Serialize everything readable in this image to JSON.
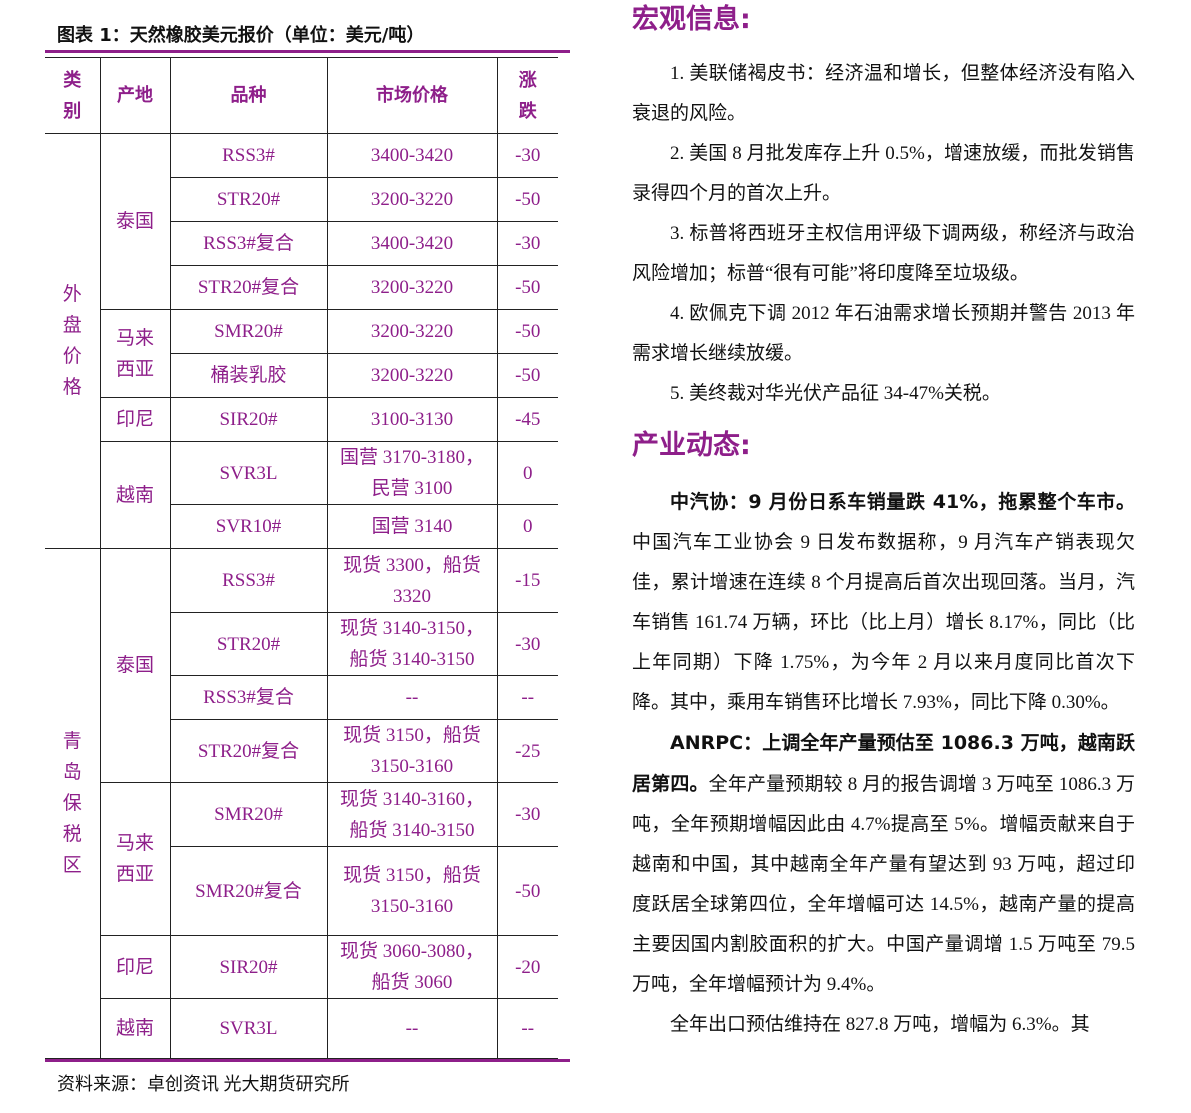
{
  "table": {
    "title": "图表 1：天然橡胶美元报价（单位：美元/吨）",
    "headers": [
      "类别",
      "产地",
      "品种",
      "市场价格",
      "涨跌"
    ],
    "regions": [
      {
        "label": "外盘价格",
        "origins": [
          {
            "name": "泰国",
            "rows": [
              [
                "RSS3#",
                "3400-3420",
                "-30"
              ],
              [
                "STR20#",
                "3200-3220",
                "-50"
              ],
              [
                "RSS3#复合",
                "3400-3420",
                "-30"
              ],
              [
                "STR20#复合",
                "3200-3220",
                "-50"
              ]
            ]
          },
          {
            "name": "马来西亚",
            "rows": [
              [
                "SMR20#",
                "3200-3220",
                "-50"
              ],
              [
                "桶装乳胶",
                "3200-3220",
                "-50"
              ]
            ]
          },
          {
            "name": "印尼",
            "rows": [
              [
                "SIR20#",
                "3100-3130",
                "-45"
              ]
            ]
          },
          {
            "name": "越南",
            "rows": [
              [
                "SVR3L",
                "国营 3170-3180，民营 3100",
                "0"
              ],
              [
                "SVR10#",
                "国营 3140",
                "0"
              ]
            ]
          }
        ]
      },
      {
        "label": "青岛保税区",
        "origins": [
          {
            "name": "泰国",
            "rows": [
              [
                "RSS3#",
                "现货 3300，船货 3320",
                "-15"
              ],
              [
                "STR20#",
                "现货 3140-3150，船货 3140-3150",
                "-30"
              ],
              [
                "RSS3#复合",
                "--",
                "--"
              ],
              [
                "STR20#复合",
                "现货 3150，船货 3150-3160",
                "-25"
              ]
            ]
          },
          {
            "name": "马来西亚",
            "rows": [
              [
                "SMR20#",
                "现货 3140-3160，船货 3140-3150",
                "-30"
              ],
              [
                "SMR20#复合",
                "现货 3150，船货 3150-3160",
                "-50"
              ]
            ]
          },
          {
            "name": "印尼",
            "rows": [
              [
                "SIR20#",
                "现货 3060-3080，船货 3060",
                "-20"
              ]
            ]
          },
          {
            "name": "越南",
            "rows": [
              [
                "SVR3L",
                "--",
                "--"
              ]
            ]
          }
        ]
      }
    ],
    "source": "资料来源：卓创资讯   光大期货研究所"
  },
  "article": {
    "sections": [
      {
        "heading": "宏观信息:",
        "paragraphs": [
          {
            "text": "1. 美联储褐皮书：经济温和增长，但整体经济没有陷入衰退的风险。"
          },
          {
            "text": "2. 美国 8 月批发库存上升 0.5%，增速放缓，而批发销售录得四个月的首次上升。"
          },
          {
            "text": "3. 标普将西班牙主权信用评级下调两级，称经济与政治风险增加；标普“很有可能”将印度降至垃圾级。"
          },
          {
            "text": "4. 欧佩克下调 2012 年石油需求增长预期并警告 2013 年需求增长继续放缓。"
          },
          {
            "text": "5. 美终裁对华光伏产品征 34-47%关税。"
          }
        ]
      },
      {
        "heading": "产业动态:",
        "paragraphs": [
          {
            "bold": "中汽协：9 月份日系车销量跌 41%，拖累整个车市。",
            "text": "中国汽车工业协会 9 日发布数据称，9 月汽车产销表现欠佳，累计增速在连续 8 个月提高后首次出现回落。当月，汽车销售 161.74 万辆，环比（比上月）增长 8.17%，同比（比上年同期）下降 1.75%，为今年 2 月以来月度同比首次下降。其中，乘用车销售环比增长 7.93%，同比下降 0.30%。"
          },
          {
            "bold": "ANRPC：上调全年产量预估至 1086.3 万吨，越南跃居第四。",
            "text": "全年产量预期较 8 月的报告调增 3 万吨至 1086.3 万吨，全年预期增幅因此由 4.7%提高至 5%。增幅贡献来自于越南和中国，其中越南全年产量有望达到 93 万吨，超过印度跃居全球第四位，全年增幅可达 14.5%，越南产量的提高主要因国内割胶面积的扩大。中国产量调增 1.5 万吨至 79.5 万吨，全年增幅预计为 9.4%。"
          },
          {
            "text": "全年出口预估维持在 827.8 万吨，增幅为 6.3%。其"
          }
        ]
      }
    ]
  }
}
